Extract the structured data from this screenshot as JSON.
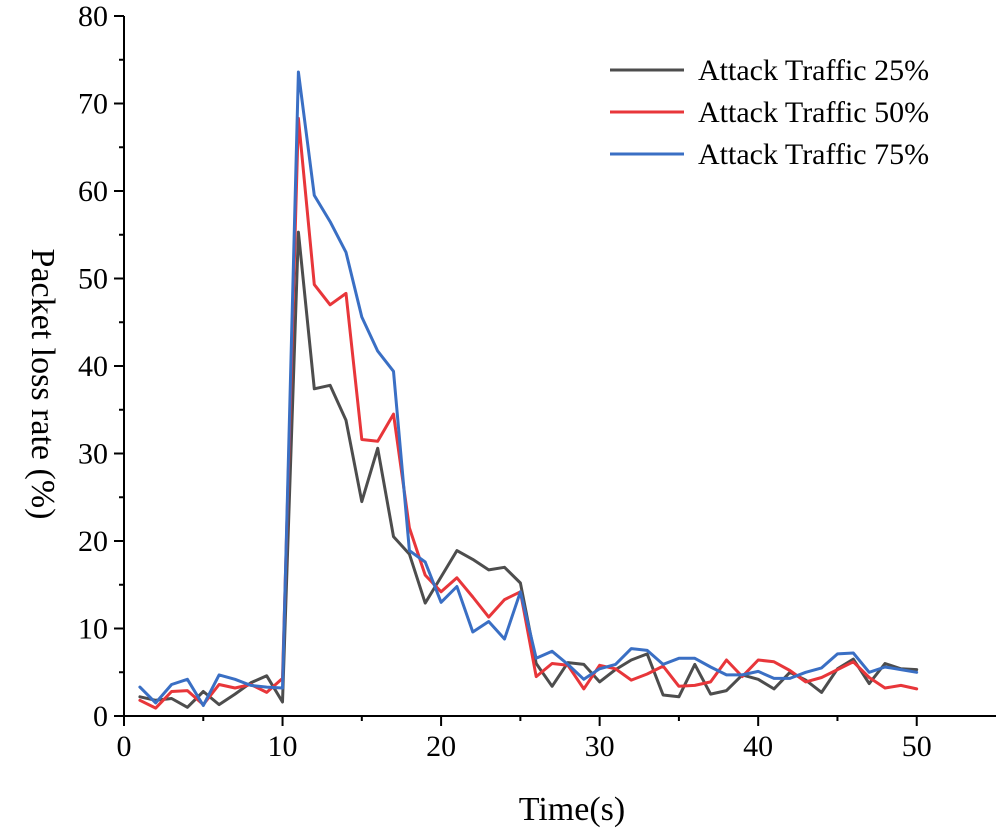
{
  "chart_data": {
    "type": "line",
    "title": "",
    "xlabel": "Time(s)",
    "ylabel": "Packet loss rate (%)",
    "xlim": [
      0,
      55
    ],
    "ylim": [
      0,
      80
    ],
    "xticks": [
      0,
      10,
      20,
      30,
      40,
      50
    ],
    "yticks": [
      0,
      10,
      20,
      30,
      40,
      50,
      60,
      70,
      80
    ],
    "legend_position": "top-right",
    "x": [
      1,
      2,
      3,
      4,
      5,
      6,
      7,
      8,
      9,
      10,
      11,
      12,
      13,
      14,
      15,
      16,
      17,
      18,
      19,
      20,
      21,
      22,
      23,
      24,
      25,
      26,
      27,
      28,
      29,
      30,
      31,
      32,
      33,
      34,
      35,
      36,
      37,
      38,
      39,
      40,
      41,
      42,
      43,
      44,
      45,
      46,
      47,
      48,
      49,
      50
    ],
    "series": [
      {
        "name": "Attack Traffic 25%",
        "color": "#4d4d4d",
        "values": [
          2.2,
          1.8,
          2.0,
          1.0,
          2.8,
          1.3,
          2.5,
          3.8,
          4.6,
          1.6,
          55.3,
          37.4,
          37.8,
          33.8,
          24.5,
          30.6,
          20.5,
          18.5,
          12.9,
          15.9,
          18.9,
          17.9,
          16.7,
          17.0,
          15.2,
          6.0,
          3.4,
          6.1,
          5.9,
          3.9,
          5.3,
          6.4,
          7.1,
          2.4,
          2.2,
          5.9,
          2.5,
          2.9,
          4.7,
          4.2,
          3.1,
          5.0,
          4.1,
          2.7,
          5.4,
          6.5,
          3.7,
          6.0,
          5.4,
          5.3
        ]
      },
      {
        "name": "Attack Traffic 50%",
        "color": "#e8363a",
        "values": [
          1.8,
          0.9,
          2.8,
          2.9,
          1.3,
          3.6,
          3.2,
          3.6,
          2.7,
          4.3,
          68.3,
          49.3,
          47.0,
          48.3,
          31.6,
          31.4,
          34.5,
          21.5,
          16.1,
          14.2,
          15.8,
          13.6,
          11.3,
          13.3,
          14.2,
          4.5,
          6.0,
          5.8,
          3.1,
          5.8,
          5.4,
          4.1,
          4.8,
          5.7,
          3.4,
          3.5,
          3.9,
          6.4,
          4.5,
          6.4,
          6.2,
          5.2,
          3.9,
          4.4,
          5.3,
          6.2,
          4.4,
          3.2,
          3.5,
          3.1
        ]
      },
      {
        "name": "Attack Traffic 75%",
        "color": "#3a6fc4",
        "values": [
          3.3,
          1.5,
          3.6,
          4.2,
          1.2,
          4.7,
          4.2,
          3.5,
          3.3,
          3.2,
          73.6,
          59.5,
          56.5,
          53.0,
          45.6,
          41.7,
          39.4,
          18.9,
          17.6,
          13.0,
          14.8,
          9.6,
          10.8,
          8.8,
          14.2,
          6.6,
          7.4,
          5.9,
          4.2,
          5.4,
          5.9,
          7.7,
          7.5,
          5.9,
          6.6,
          6.6,
          5.6,
          4.7,
          4.7,
          5.1,
          4.3,
          4.3,
          5.0,
          5.5,
          7.1,
          7.2,
          5.0,
          5.6,
          5.3,
          5.0
        ]
      }
    ]
  }
}
